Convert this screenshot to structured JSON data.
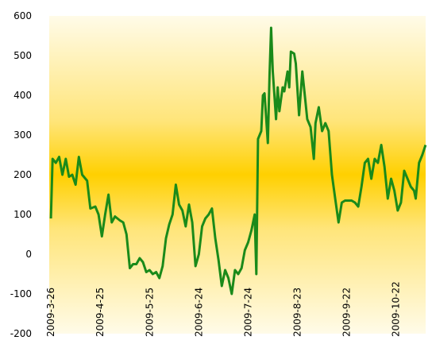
{
  "chart_data": {
    "type": "line",
    "title": "",
    "xlabel": "",
    "ylabel": "",
    "ylim": [
      -200,
      600
    ],
    "yticks": [
      -200,
      -100,
      0,
      100,
      200,
      300,
      400,
      500,
      600
    ],
    "yticks_text": [
      "-200",
      "-100",
      "0",
      "100",
      "200",
      "300",
      "400",
      "500",
      "600"
    ],
    "x_tick_labels": [
      "2009-3-26",
      "2009-4-25",
      "2009-5-25",
      "2009-6-24",
      "2009-7-24",
      "2009-8-23",
      "2009-9-22",
      "2009-10-22"
    ],
    "grid": false,
    "legend": "none",
    "background": "vertical gradient: pale cream at top and bottom, golden yellow band at y=200",
    "colors": {
      "line": "#1a8a1a",
      "band_center": "#ffd000",
      "band_edge": "#fffbe8"
    },
    "series": [
      {
        "values": [
          {
            "x": "2009-03-26",
            "y": 90
          },
          {
            "x": "2009-03-27",
            "y": 240
          },
          {
            "x": "2009-03-29",
            "y": 230
          },
          {
            "x": "2009-03-31",
            "y": 245
          },
          {
            "x": "2009-04-02",
            "y": 200
          },
          {
            "x": "2009-04-04",
            "y": 240
          },
          {
            "x": "2009-04-06",
            "y": 195
          },
          {
            "x": "2009-04-08",
            "y": 200
          },
          {
            "x": "2009-04-10",
            "y": 175
          },
          {
            "x": "2009-04-12",
            "y": 245
          },
          {
            "x": "2009-04-14",
            "y": 200
          },
          {
            "x": "2009-04-17",
            "y": 185
          },
          {
            "x": "2009-04-19",
            "y": 115
          },
          {
            "x": "2009-04-22",
            "y": 120
          },
          {
            "x": "2009-04-24",
            "y": 100
          },
          {
            "x": "2009-04-26",
            "y": 45
          },
          {
            "x": "2009-04-28",
            "y": 100
          },
          {
            "x": "2009-04-30",
            "y": 150
          },
          {
            "x": "2009-05-02",
            "y": 80
          },
          {
            "x": "2009-05-04",
            "y": 95
          },
          {
            "x": "2009-05-07",
            "y": 85
          },
          {
            "x": "2009-05-09",
            "y": 80
          },
          {
            "x": "2009-05-11",
            "y": 50
          },
          {
            "x": "2009-05-13",
            "y": -35
          },
          {
            "x": "2009-05-15",
            "y": -25
          },
          {
            "x": "2009-05-17",
            "y": -25
          },
          {
            "x": "2009-05-19",
            "y": -10
          },
          {
            "x": "2009-05-21",
            "y": -20
          },
          {
            "x": "2009-05-23",
            "y": -45
          },
          {
            "x": "2009-05-25",
            "y": -40
          },
          {
            "x": "2009-05-27",
            "y": -50
          },
          {
            "x": "2009-05-29",
            "y": -45
          },
          {
            "x": "2009-05-31",
            "y": -60
          },
          {
            "x": "2009-06-02",
            "y": -30
          },
          {
            "x": "2009-06-04",
            "y": 40
          },
          {
            "x": "2009-06-06",
            "y": 75
          },
          {
            "x": "2009-06-08",
            "y": 100
          },
          {
            "x": "2009-06-10",
            "y": 175
          },
          {
            "x": "2009-06-12",
            "y": 125
          },
          {
            "x": "2009-06-14",
            "y": 110
          },
          {
            "x": "2009-06-16",
            "y": 70
          },
          {
            "x": "2009-06-18",
            "y": 125
          },
          {
            "x": "2009-06-20",
            "y": 80
          },
          {
            "x": "2009-06-22",
            "y": -30
          },
          {
            "x": "2009-06-24",
            "y": 0
          },
          {
            "x": "2009-06-26",
            "y": 70
          },
          {
            "x": "2009-06-28",
            "y": 90
          },
          {
            "x": "2009-06-30",
            "y": 100
          },
          {
            "x": "2009-07-02",
            "y": 115
          },
          {
            "x": "2009-07-04",
            "y": 40
          },
          {
            "x": "2009-07-06",
            "y": -15
          },
          {
            "x": "2009-07-08",
            "y": -80
          },
          {
            "x": "2009-07-10",
            "y": -40
          },
          {
            "x": "2009-07-12",
            "y": -60
          },
          {
            "x": "2009-07-14",
            "y": -100
          },
          {
            "x": "2009-07-16",
            "y": -40
          },
          {
            "x": "2009-07-18",
            "y": -50
          },
          {
            "x": "2009-07-20",
            "y": -35
          },
          {
            "x": "2009-07-22",
            "y": 10
          },
          {
            "x": "2009-07-24",
            "y": 30
          },
          {
            "x": "2009-07-26",
            "y": 60
          },
          {
            "x": "2009-07-28",
            "y": 100
          },
          {
            "x": "2009-07-29",
            "y": -50
          },
          {
            "x": "2009-07-30",
            "y": 290
          },
          {
            "x": "2009-08-01",
            "y": 310
          },
          {
            "x": "2009-08-02",
            "y": 400
          },
          {
            "x": "2009-08-03",
            "y": 405
          },
          {
            "x": "2009-08-05",
            "y": 280
          },
          {
            "x": "2009-08-06",
            "y": 450
          },
          {
            "x": "2009-08-07",
            "y": 570
          },
          {
            "x": "2009-08-08",
            "y": 460
          },
          {
            "x": "2009-08-10",
            "y": 340
          },
          {
            "x": "2009-08-11",
            "y": 420
          },
          {
            "x": "2009-08-12",
            "y": 360
          },
          {
            "x": "2009-08-14",
            "y": 420
          },
          {
            "x": "2009-08-15",
            "y": 410
          },
          {
            "x": "2009-08-17",
            "y": 460
          },
          {
            "x": "2009-08-18",
            "y": 420
          },
          {
            "x": "2009-08-19",
            "y": 510
          },
          {
            "x": "2009-08-21",
            "y": 505
          },
          {
            "x": "2009-08-22",
            "y": 480
          },
          {
            "x": "2009-08-24",
            "y": 350
          },
          {
            "x": "2009-08-26",
            "y": 460
          },
          {
            "x": "2009-08-27",
            "y": 420
          },
          {
            "x": "2009-08-29",
            "y": 340
          },
          {
            "x": "2009-08-31",
            "y": 320
          },
          {
            "x": "2009-09-02",
            "y": 240
          },
          {
            "x": "2009-09-03",
            "y": 330
          },
          {
            "x": "2009-09-05",
            "y": 370
          },
          {
            "x": "2009-09-07",
            "y": 310
          },
          {
            "x": "2009-09-09",
            "y": 330
          },
          {
            "x": "2009-09-11",
            "y": 310
          },
          {
            "x": "2009-09-13",
            "y": 200
          },
          {
            "x": "2009-09-15",
            "y": 140
          },
          {
            "x": "2009-09-17",
            "y": 80
          },
          {
            "x": "2009-09-19",
            "y": 130
          },
          {
            "x": "2009-09-21",
            "y": 135
          },
          {
            "x": "2009-09-23",
            "y": 135
          },
          {
            "x": "2009-09-25",
            "y": 135
          },
          {
            "x": "2009-09-27",
            "y": 130
          },
          {
            "x": "2009-09-29",
            "y": 120
          },
          {
            "x": "2009-10-01",
            "y": 170
          },
          {
            "x": "2009-10-03",
            "y": 230
          },
          {
            "x": "2009-10-05",
            "y": 240
          },
          {
            "x": "2009-10-07",
            "y": 190
          },
          {
            "x": "2009-10-09",
            "y": 240
          },
          {
            "x": "2009-10-11",
            "y": 230
          },
          {
            "x": "2009-10-13",
            "y": 275
          },
          {
            "x": "2009-10-15",
            "y": 220
          },
          {
            "x": "2009-10-17",
            "y": 140
          },
          {
            "x": "2009-10-19",
            "y": 190
          },
          {
            "x": "2009-10-21",
            "y": 160
          },
          {
            "x": "2009-10-23",
            "y": 110
          },
          {
            "x": "2009-10-25",
            "y": 130
          },
          {
            "x": "2009-10-27",
            "y": 210
          },
          {
            "x": "2009-10-29",
            "y": 190
          },
          {
            "x": "2009-10-31",
            "y": 170
          },
          {
            "x": "2009-11-02",
            "y": 160
          },
          {
            "x": "2009-11-03",
            "y": 140
          },
          {
            "x": "2009-11-05",
            "y": 230
          },
          {
            "x": "2009-11-07",
            "y": 250
          },
          {
            "x": "2009-11-09",
            "y": 275
          }
        ]
      }
    ]
  }
}
